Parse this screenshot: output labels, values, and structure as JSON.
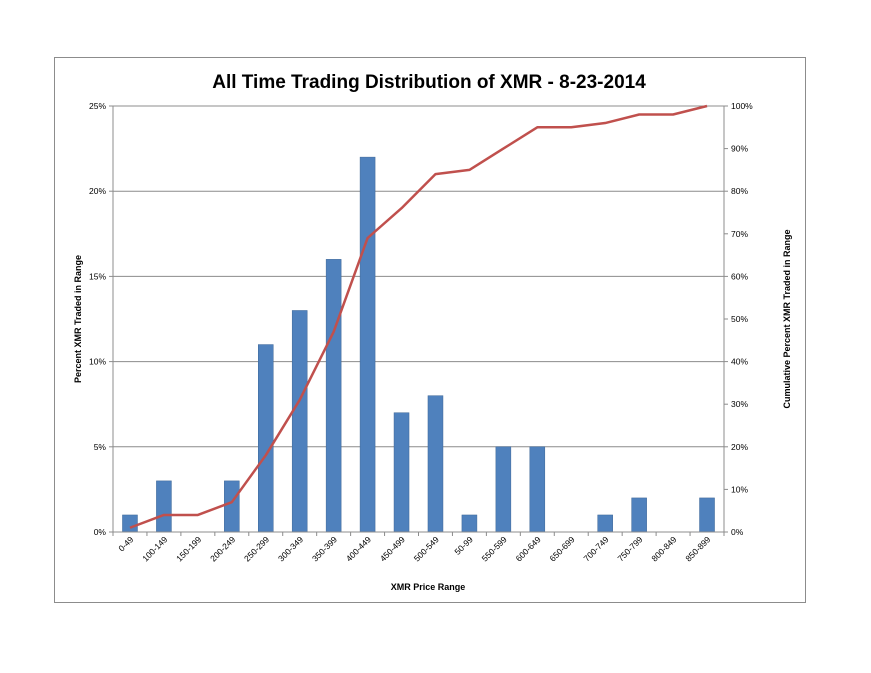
{
  "chart_data": {
    "type": "bar",
    "title": "All Time Trading Distribution of XMR - 8-23-2014",
    "xlabel": "XMR Price Range",
    "ylabel": "Percent XMR Traded in Range",
    "y2label": "Cumulative Percent XMR Traded in Range",
    "categories": [
      "0-49",
      "100-149",
      "150-199",
      "200-249",
      "250-299",
      "300-349",
      "350-399",
      "400-449",
      "450-499",
      "500-549",
      "50-99",
      "550-599",
      "600-649",
      "650-699",
      "700-749",
      "750-799",
      "800-849",
      "850-899"
    ],
    "ylim": [
      0,
      25
    ],
    "y_ticks": [
      "0%",
      "5%",
      "10%",
      "15%",
      "20%",
      "25%"
    ],
    "y2lim": [
      0,
      100
    ],
    "y2_ticks": [
      "0%",
      "10%",
      "20%",
      "30%",
      "40%",
      "50%",
      "60%",
      "70%",
      "80%",
      "90%",
      "100%"
    ],
    "grid": true,
    "series": [
      {
        "type": "bar",
        "axis": "left",
        "color": "#4f81bd",
        "values": [
          1,
          3,
          0,
          3,
          11,
          13,
          16,
          22,
          7,
          8,
          1,
          5,
          5,
          0,
          1,
          2,
          0,
          2
        ]
      },
      {
        "type": "line",
        "axis": "right",
        "color": "#c0504d",
        "values": [
          1,
          4,
          4,
          7,
          18,
          31,
          47,
          69,
          76,
          84,
          85,
          90,
          95,
          95,
          96,
          98,
          98,
          100
        ]
      }
    ]
  }
}
